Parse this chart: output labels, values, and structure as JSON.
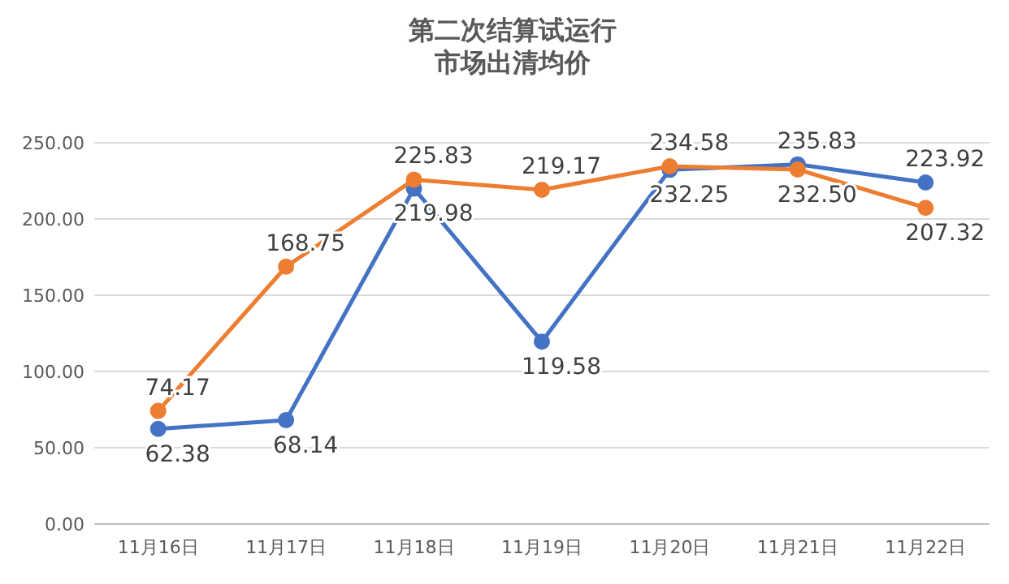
{
  "chart_data": {
    "type": "line",
    "title": "第二次结算试运行",
    "subtitle": "市场出清均价",
    "categories": [
      "11月16日",
      "11月17日",
      "11月18日",
      "11月19日",
      "11月20日",
      "11月21日",
      "11月22日"
    ],
    "series": [
      {
        "color": "#4472c4",
        "values": [
          62.38,
          68.14,
          219.98,
          119.58,
          232.25,
          235.83,
          223.92
        ],
        "value_labels": [
          "62.38",
          "68.14",
          "219.98",
          "119.58",
          "232.25",
          "235.83",
          "223.92"
        ]
      },
      {
        "color": "#ed7d31",
        "values": [
          74.17,
          168.75,
          225.83,
          219.17,
          234.58,
          232.5,
          207.32
        ],
        "value_labels": [
          "74.17",
          "168.75",
          "225.83",
          "219.17",
          "234.58",
          "232.50",
          "207.32"
        ]
      }
    ],
    "ylim": [
      0,
      250
    ],
    "yticks": [
      {
        "value": 0,
        "label": "0.00"
      },
      {
        "value": 50,
        "label": "50.00"
      },
      {
        "value": 100,
        "label": "100.00"
      },
      {
        "value": 150,
        "label": "150.00"
      },
      {
        "value": 200,
        "label": "200.00"
      },
      {
        "value": 250,
        "label": "250.00"
      }
    ],
    "grid": "y",
    "marker": "circle",
    "line_style": "solid"
  }
}
